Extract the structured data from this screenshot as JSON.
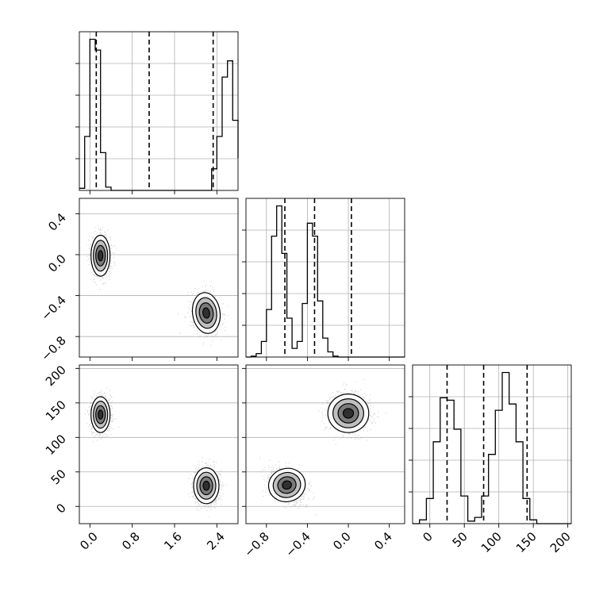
{
  "chart_data": {
    "type": "corner",
    "grid": true,
    "colors": {
      "ink": "#000000",
      "grid": "#b0b0b0",
      "scatter": "#7f7f7f",
      "background": "#ffffff"
    },
    "parameters": [
      {
        "ticks": [
          "0.0",
          "0.8",
          "1.6",
          "2.4"
        ],
        "tick_values": [
          0.0,
          0.8,
          1.6,
          2.4
        ],
        "range": [
          -0.2,
          2.8
        ]
      },
      {
        "ticks": [
          "0.4",
          "0.0",
          "−0.4",
          "−0.8",
          "−0.8",
          "−0.4",
          "0.0",
          "0.4"
        ],
        "tick_values": [
          -0.8,
          -0.4,
          0.0,
          0.4
        ],
        "range": [
          -1.0,
          0.55
        ]
      },
      {
        "ticks": [
          "200",
          "150",
          "100",
          "50",
          "0",
          "0",
          "50",
          "100",
          "150",
          "200"
        ],
        "tick_values": [
          0,
          50,
          100,
          150,
          200
        ],
        "range": [
          -25,
          205
        ]
      }
    ],
    "histograms": [
      {
        "param": 0,
        "bin_edges": [
          -0.2,
          -0.1,
          0.0,
          0.1,
          0.2,
          0.3,
          0.4,
          0.5,
          0.6,
          0.7,
          0.8,
          0.9,
          1.0,
          1.1,
          1.2,
          1.3,
          1.4,
          1.5,
          1.6,
          1.7,
          1.8,
          1.9,
          2.0,
          2.1,
          2.2,
          2.3,
          2.4,
          2.5,
          2.6,
          2.7,
          2.8
        ],
        "counts": [
          2,
          50,
          140,
          130,
          35,
          3,
          0,
          0,
          0,
          0,
          0,
          0,
          0,
          0,
          0,
          0,
          0,
          0,
          0,
          0,
          0,
          0,
          0,
          0,
          0,
          20,
          50,
          105,
          120,
          65,
          30
        ],
        "quantiles": [
          0.12,
          1.12,
          2.33
        ]
      },
      {
        "param": 1,
        "bin_edges": [
          -1.0,
          -0.95,
          -0.9,
          -0.85,
          -0.8,
          -0.75,
          -0.7,
          -0.65,
          -0.6,
          -0.55,
          -0.5,
          -0.45,
          -0.4,
          -0.35,
          -0.3,
          -0.25,
          -0.2,
          -0.15,
          -0.1,
          -0.05,
          0.0,
          0.05,
          0.1,
          0.15,
          0.2,
          0.25,
          0.3,
          0.35,
          0.4,
          0.45,
          0.5,
          0.55
        ],
        "counts": [
          0,
          1,
          4,
          18,
          55,
          140,
          175,
          120,
          45,
          10,
          18,
          62,
          155,
          140,
          65,
          22,
          6,
          1,
          0,
          0,
          0,
          0,
          0,
          0,
          0,
          0,
          0,
          0,
          0,
          0,
          0
        ],
        "quantiles": [
          -0.62,
          -0.33,
          0.03
        ]
      },
      {
        "param": 2,
        "bin_edges": [
          -25,
          -15,
          -5,
          5,
          15,
          25,
          35,
          45,
          55,
          65,
          75,
          85,
          95,
          105,
          115,
          125,
          135,
          145,
          155,
          165,
          175,
          185,
          195,
          205
        ],
        "counts": [
          0,
          3,
          20,
          65,
          100,
          98,
          75,
          22,
          2,
          5,
          22,
          55,
          90,
          120,
          95,
          65,
          20,
          3,
          0,
          0,
          0,
          0,
          0
        ],
        "quantiles": [
          25,
          78,
          141
        ]
      }
    ],
    "scatter_panels": [
      {
        "x_param": 0,
        "y_param": 1,
        "clusters": [
          {
            "cx": 0.2,
            "cy": -0.01,
            "sx": 0.09,
            "sy": 0.1
          },
          {
            "cx": 2.2,
            "cy": -0.57,
            "sx": 0.13,
            "sy": 0.1,
            "rho": -0.2
          }
        ]
      },
      {
        "x_param": 0,
        "y_param": 2,
        "clusters": [
          {
            "cx": 0.2,
            "cy": 133,
            "sx": 0.09,
            "sy": 13
          },
          {
            "cx": 2.2,
            "cy": 30,
            "sx": 0.12,
            "sy": 13
          }
        ]
      },
      {
        "x_param": 1,
        "y_param": 2,
        "clusters": [
          {
            "cx": -0.6,
            "cy": 31,
            "sx": 0.09,
            "sy": 12,
            "rho": -0.35
          },
          {
            "cx": 0.0,
            "cy": 135,
            "sx": 0.1,
            "sy": 14
          }
        ]
      }
    ]
  }
}
